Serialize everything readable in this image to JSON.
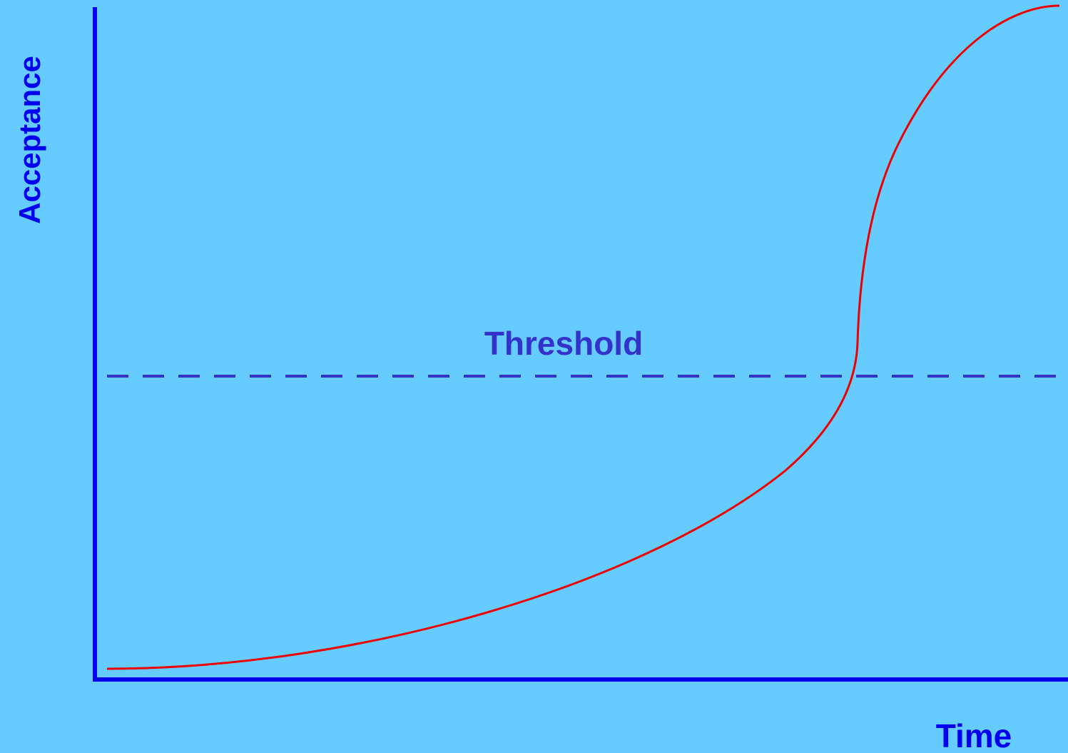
{
  "axes": {
    "y_label": "Acceptance",
    "x_label": "Time"
  },
  "threshold": {
    "label": "Threshold"
  }
}
